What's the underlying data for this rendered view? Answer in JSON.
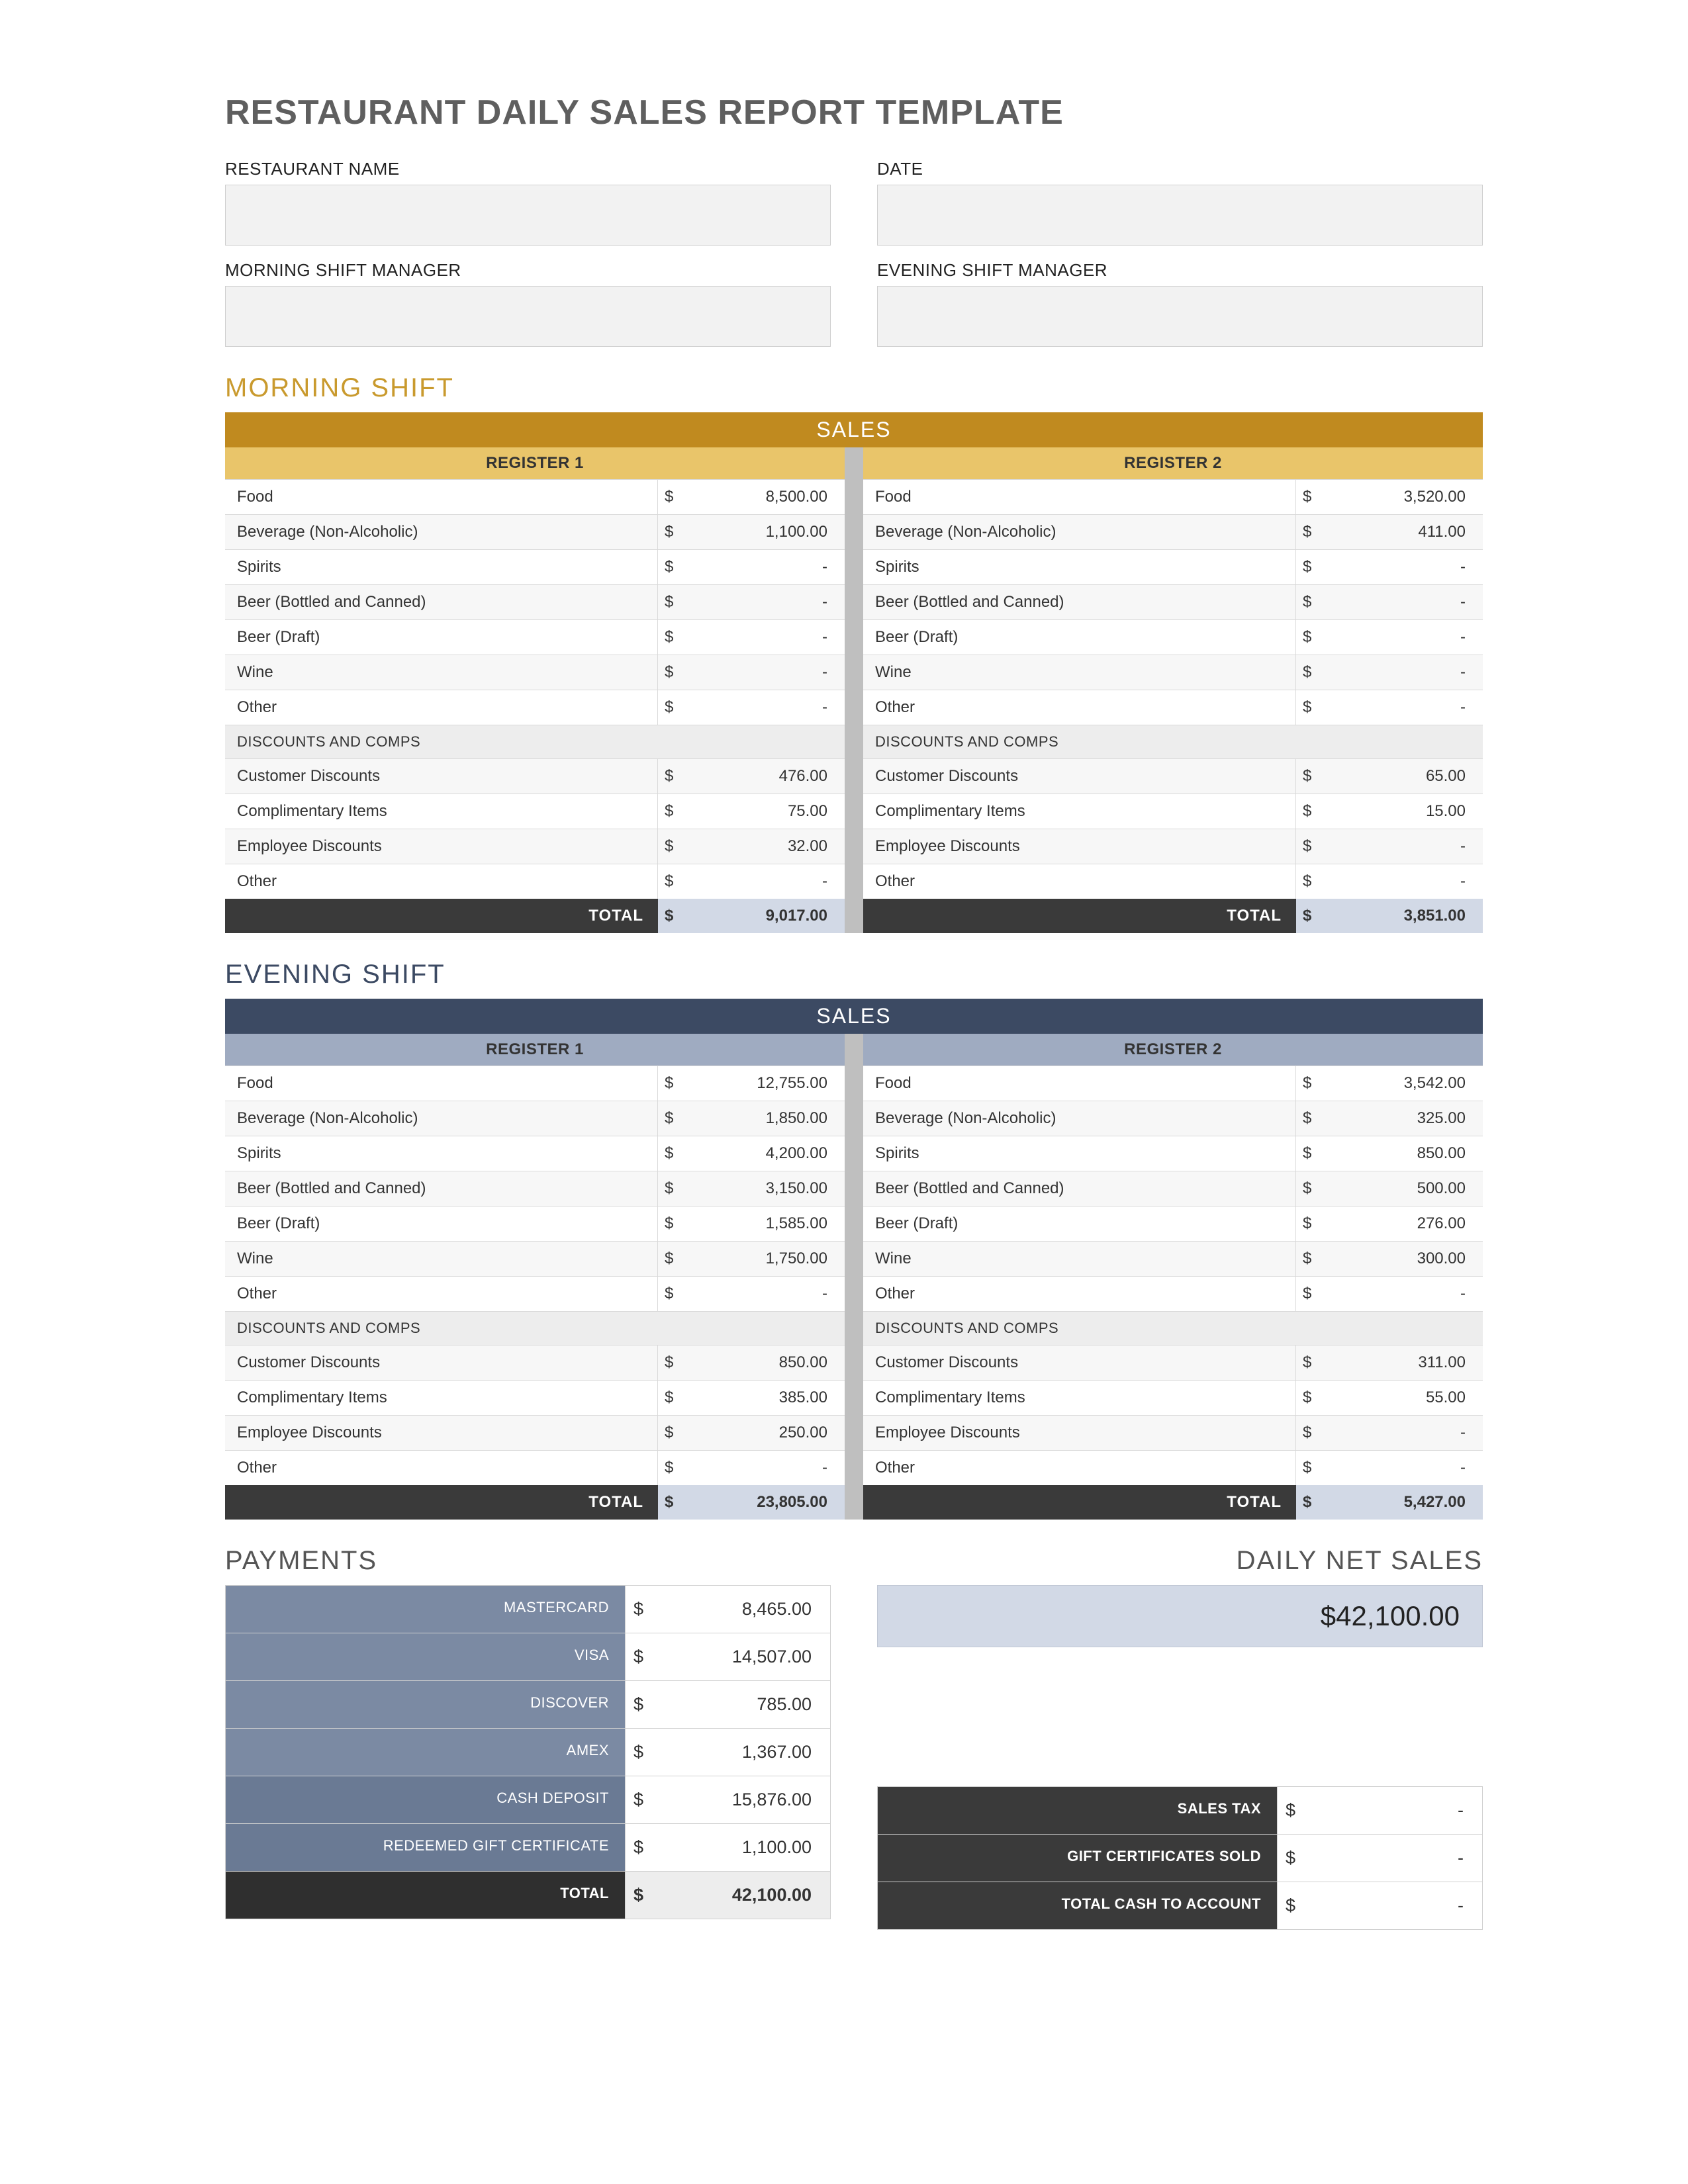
{
  "title": "RESTAURANT DAILY SALES REPORT TEMPLATE",
  "header_fields": {
    "restaurant_name_label": "RESTAURANT NAME",
    "date_label": "DATE",
    "morning_mgr_label": "MORNING SHIFT MANAGER",
    "evening_mgr_label": "EVENING SHIFT MANAGER",
    "restaurant_name_value": "",
    "date_value": "",
    "morning_mgr_value": "",
    "evening_mgr_value": ""
  },
  "labels": {
    "sales_banner": "SALES",
    "register1": "REGISTER 1",
    "register2": "REGISTER 2",
    "discounts_comps": "DISCOUNTS AND COMPS",
    "total": "TOTAL",
    "morning_shift": "MORNING SHIFT",
    "evening_shift": "EVENING SHIFT",
    "payments": "PAYMENTS",
    "daily_net_sales": "DAILY NET SALES"
  },
  "sales_categories": [
    "Food",
    "Beverage (Non-Alcoholic)",
    "Spirits",
    "Beer (Bottled and Canned)",
    "Beer (Draft)",
    "Wine",
    "Other"
  ],
  "discount_categories": [
    "Customer Discounts",
    "Complimentary Items",
    "Employee Discounts",
    "Other"
  ],
  "morning": {
    "reg1": {
      "sales": [
        "8,500.00",
        "1,100.00",
        "-",
        "-",
        "-",
        "-",
        "-"
      ],
      "discounts": [
        "476.00",
        "75.00",
        "32.00",
        "-"
      ],
      "total": "9,017.00"
    },
    "reg2": {
      "sales": [
        "3,520.00",
        "411.00",
        "-",
        "-",
        "-",
        "-",
        "-"
      ],
      "discounts": [
        "65.00",
        "15.00",
        "-",
        "-"
      ],
      "total": "3,851.00"
    }
  },
  "evening": {
    "reg1": {
      "sales": [
        "12,755.00",
        "1,850.00",
        "4,200.00",
        "3,150.00",
        "1,585.00",
        "1,750.00",
        "-"
      ],
      "discounts": [
        "850.00",
        "385.00",
        "250.00",
        "-"
      ],
      "total": "23,805.00"
    },
    "reg2": {
      "sales": [
        "3,542.00",
        "325.00",
        "850.00",
        "500.00",
        "276.00",
        "300.00",
        "-"
      ],
      "discounts": [
        "311.00",
        "55.00",
        "-",
        "-"
      ],
      "total": "5,427.00"
    }
  },
  "payments": {
    "rows": [
      {
        "label": "MASTERCARD",
        "value": "8,465.00",
        "color": "#7b8aa3"
      },
      {
        "label": "VISA",
        "value": "14,507.00",
        "color": "#7b8aa3"
      },
      {
        "label": "DISCOVER",
        "value": "785.00",
        "color": "#7b8aa3"
      },
      {
        "label": "AMEX",
        "value": "1,367.00",
        "color": "#7b8aa3"
      },
      {
        "label": "CASH DEPOSIT",
        "value": "15,876.00",
        "color": "#6a7a94"
      },
      {
        "label": "REDEEMED GIFT CERTIFICATE",
        "value": "1,100.00",
        "color": "#6a7a94"
      }
    ],
    "total": {
      "label": "TOTAL",
      "value": "42,100.00"
    }
  },
  "net_sales": "$42,100.00",
  "taxes": {
    "rows": [
      {
        "label": "SALES TAX",
        "value": "-",
        "color": "#3a3a3a"
      },
      {
        "label": "GIFT CERTIFICATES SOLD",
        "value": "-",
        "color": "#3a3a3a"
      },
      {
        "label": "TOTAL CASH TO ACCOUNT",
        "value": "-",
        "color": "#3a3a3a"
      }
    ]
  },
  "colors": {
    "morning_banner": "#c08a1f",
    "morning_reg_hdr": "#e9c56a",
    "evening_banner": "#3c4a63",
    "evening_reg_hdr": "#9fabc1",
    "total_cell_bg": "#d2d9e6",
    "alt_row_bg": "#f7f7f7",
    "dark_row_bg": "#3a3a3a",
    "title_color": "#5f5f5f"
  }
}
